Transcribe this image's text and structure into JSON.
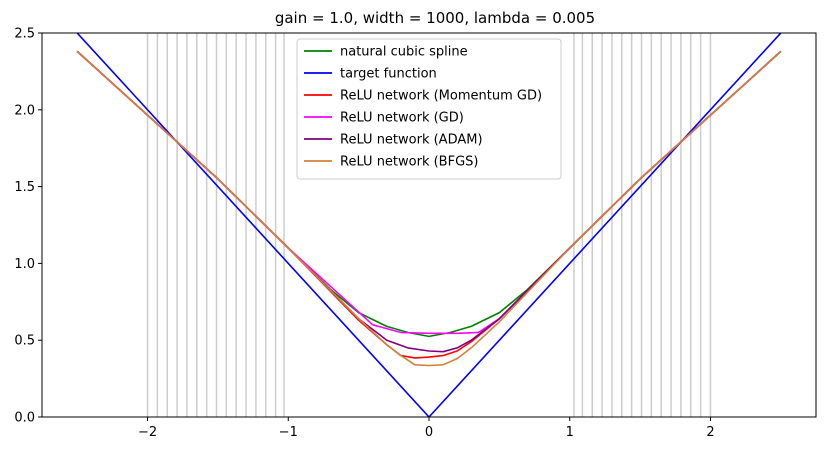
{
  "chart_data": {
    "type": "line",
    "title": "gain = 1.0, width = 1000, lambda = 0.005",
    "xlabel": "",
    "ylabel": "",
    "xlim": [
      -2.75,
      2.75
    ],
    "ylim": [
      0,
      2.5
    ],
    "x_ticks": [
      -2,
      -1,
      0,
      1,
      2
    ],
    "x_tick_labels": [
      "−2",
      "−1",
      "0",
      "1",
      "2"
    ],
    "y_ticks": [
      0.0,
      0.5,
      1.0,
      1.5,
      2.0,
      2.5
    ],
    "y_tick_labels": [
      "0.0",
      "0.5",
      "1.0",
      "1.5",
      "2.0",
      "2.5"
    ],
    "grid": false,
    "legend_position": "top-center",
    "vertical_lines": {
      "color": "#cccccc",
      "x": [
        -2.0,
        -1.93,
        -1.86,
        -1.79,
        -1.72,
        -1.65,
        -1.58,
        -1.51,
        -1.44,
        -1.37,
        -1.3,
        -1.23,
        -1.16,
        -1.09,
        -1.03,
        1.03,
        1.09,
        1.16,
        1.23,
        1.3,
        1.37,
        1.44,
        1.51,
        1.58,
        1.65,
        1.72,
        1.79,
        1.86,
        1.93,
        2.0
      ]
    },
    "series": [
      {
        "name": "natural cubic spline",
        "color": "#008000",
        "x": [
          -2.5,
          -1.5,
          -1.0,
          -0.7,
          -0.5,
          -0.3,
          -0.15,
          0.0,
          0.15,
          0.3,
          0.5,
          0.7,
          1.0,
          1.5,
          2.5
        ],
        "y": [
          2.38,
          1.55,
          1.1,
          0.83,
          0.68,
          0.59,
          0.55,
          0.525,
          0.55,
          0.59,
          0.68,
          0.83,
          1.1,
          1.55,
          2.38
        ]
      },
      {
        "name": "target function",
        "color": "#0000ff",
        "x": [
          -2.75,
          0.0,
          2.75
        ],
        "y": [
          2.75,
          0.0,
          2.75
        ]
      },
      {
        "name": "ReLU network (Momentum GD)",
        "color": "#ff0000",
        "x": [
          -2.5,
          -1.5,
          -1.0,
          -0.5,
          -0.3,
          -0.2,
          -0.1,
          0.0,
          0.1,
          0.2,
          0.3,
          0.5,
          1.0,
          1.5,
          2.5
        ],
        "y": [
          2.38,
          1.55,
          1.1,
          0.63,
          0.47,
          0.4,
          0.385,
          0.39,
          0.4,
          0.43,
          0.49,
          0.64,
          1.1,
          1.55,
          2.38
        ]
      },
      {
        "name": "ReLU network (GD)",
        "color": "#ff00ff",
        "x": [
          -2.5,
          -1.5,
          -1.0,
          -0.4,
          -0.2,
          0.0,
          0.2,
          0.35,
          0.5,
          1.0,
          1.5,
          2.5
        ],
        "y": [
          2.38,
          1.55,
          1.1,
          0.6,
          0.55,
          0.545,
          0.545,
          0.55,
          0.64,
          1.1,
          1.55,
          2.38
        ]
      },
      {
        "name": "ReLU network (ADAM)",
        "color": "#800080",
        "x": [
          -2.5,
          -1.5,
          -1.0,
          -0.5,
          -0.3,
          -0.15,
          0.0,
          0.1,
          0.2,
          0.3,
          0.5,
          1.0,
          1.5,
          2.5
        ],
        "y": [
          2.38,
          1.55,
          1.1,
          0.64,
          0.5,
          0.45,
          0.43,
          0.425,
          0.45,
          0.5,
          0.64,
          1.1,
          1.55,
          2.38
        ]
      },
      {
        "name": "ReLU network (BFGS)",
        "color": "#d2803a",
        "x": [
          -2.5,
          -1.5,
          -1.0,
          -0.5,
          -0.3,
          -0.2,
          -0.1,
          0.0,
          0.1,
          0.2,
          0.3,
          0.5,
          1.0,
          1.5,
          2.5
        ],
        "y": [
          2.38,
          1.55,
          1.1,
          0.64,
          0.47,
          0.4,
          0.34,
          0.335,
          0.34,
          0.38,
          0.45,
          0.62,
          1.1,
          1.55,
          2.38
        ]
      }
    ]
  }
}
